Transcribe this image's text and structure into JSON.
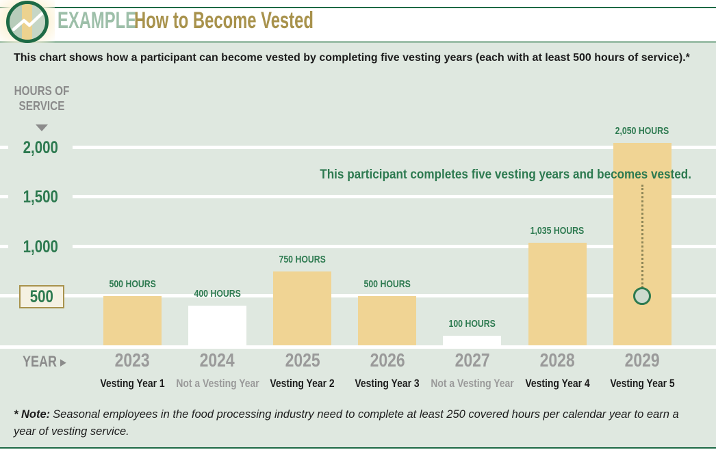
{
  "header": {
    "badge": "EXAMPLE",
    "title": "How to Become Vested"
  },
  "subtitle": "This chart shows how a participant can become vested by completing five vesting years (each with at least 500 hours of service).*",
  "chart_data": {
    "type": "bar",
    "title": "How to Become Vested",
    "y_axis_label": "HOURS OF SERVICE",
    "x_axis_label": "YEAR",
    "ylim": [
      0,
      2200
    ],
    "grid": true,
    "y_tick_values": [
      2000,
      1500,
      1000,
      500
    ],
    "y_tick_labels": [
      "2,000",
      "1,500",
      "1,000",
      "500"
    ],
    "highlighted_tick_value": 500,
    "categories": [
      "2023",
      "2024",
      "2025",
      "2026",
      "2027",
      "2028",
      "2029"
    ],
    "values": [
      500,
      400,
      750,
      500,
      100,
      1035,
      2050
    ],
    "bar_labels": [
      "500 HOURS",
      "400 HOURS",
      "750 HOURS",
      "500 HOURS",
      "100 HOURS",
      "1,035 HOURS",
      "2,050 HOURS"
    ],
    "category_sublabels": [
      "Vesting Year 1",
      "Not a Vesting Year",
      "Vesting Year 2",
      "Vesting Year 3",
      "Not a Vesting Year",
      "Vesting Year 4",
      "Vesting Year 5"
    ],
    "is_vesting_year": [
      true,
      false,
      true,
      true,
      false,
      true,
      true
    ],
    "annotation": "This participant completes five vesting years and becomes vested.",
    "marker": {
      "category": "2029",
      "value": 500
    }
  },
  "footnote": {
    "label": "* Note:",
    "text": "Seasonal employees in the food processing industry need to complete at least 250 covered hours per calendar year to earn a year of vesting service."
  },
  "icons": {
    "year_arrow": "▶"
  },
  "colors": {
    "dark_green": "#1d6a45",
    "accent_green": "#2d7a50",
    "sage": "#9dbfa9",
    "gold": "#a8924c",
    "chart_background": "#dfe8e0",
    "bar_vesting": "#f0d494",
    "bar_not_vesting": "#ffffff",
    "gridline": "#ffffff",
    "gray_label": "#8b8b8b",
    "year_gray": "#9a9a9a",
    "dark_text": "#1c1c1c",
    "marker_fill": "#ccdace",
    "dotted_line": "#8f8757",
    "tick_box_fill": "#f5f1e2"
  }
}
